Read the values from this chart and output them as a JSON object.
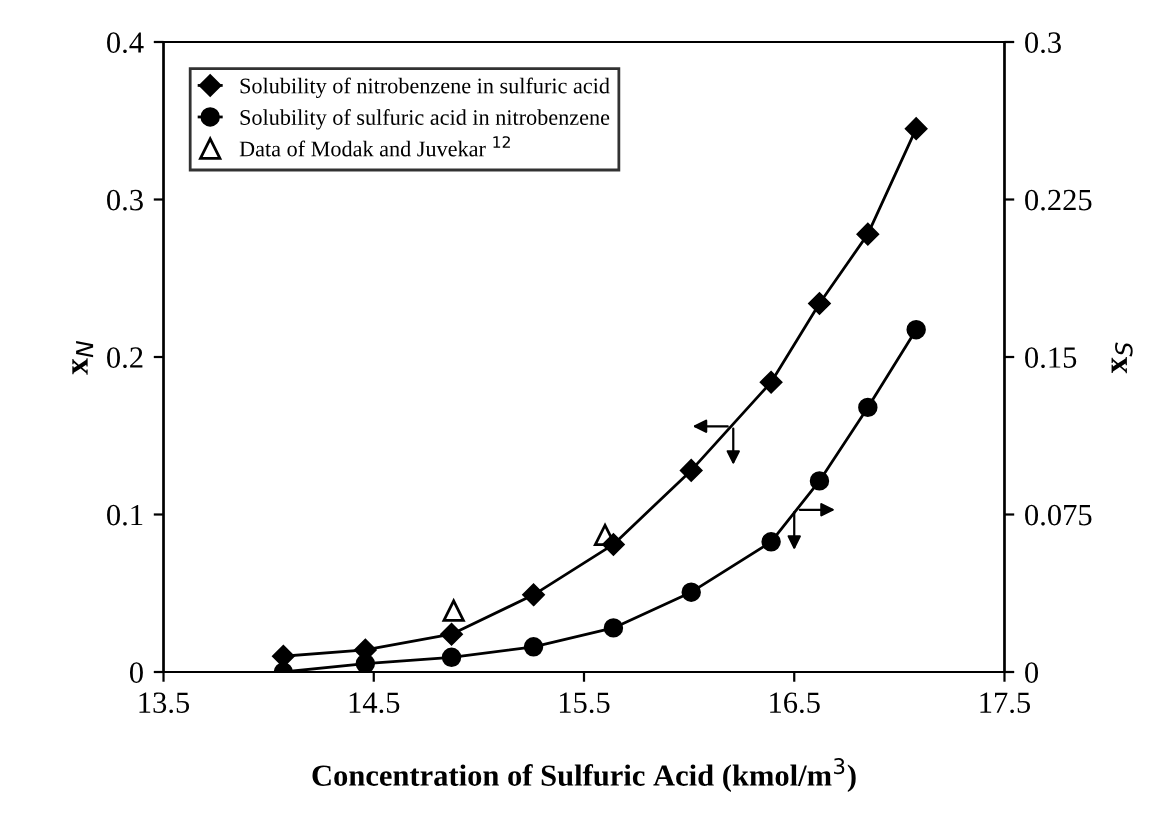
{
  "chart_data": {
    "type": "line",
    "xlabel": "Concentration of Sulfuric Acid (kmol/m$^{3}$)",
    "ylabel": "x$_{N}$",
    "y2label": "x$_{S}$",
    "xlim": [
      13.5,
      17.5
    ],
    "xticks": [
      13.5,
      14.5,
      15.5,
      16.5,
      17.5
    ],
    "ylim": [
      0,
      0.4
    ],
    "yticks": [
      0,
      0.1,
      0.2,
      0.3,
      0.4
    ],
    "y2lim": [
      0,
      0.3
    ],
    "y2ticks": [
      0,
      0.075,
      0.15,
      0.225,
      0.3
    ],
    "grid": false,
    "legend": "top left",
    "series": [
      {
        "name": "Solubility of nitrobenzene in sulfuric acid",
        "color": "#000000",
        "marker": "diamond",
        "x": [
          14.07,
          14.46,
          14.87,
          15.26,
          15.64,
          16.01,
          16.39,
          16.62,
          16.85,
          17.08
        ],
        "values": [
          0.01,
          0.014,
          0.024,
          0.049,
          0.081,
          0.128,
          0.184,
          0.234,
          0.278,
          0.345
        ]
      },
      {
        "name": "Solubility of sulfuric acid in nitrobenzene",
        "color": "#000000",
        "marker": "circle",
        "axis": "y2",
        "x": [
          14.07,
          14.46,
          14.87,
          15.26,
          15.64,
          16.01,
          16.39,
          16.62,
          16.85,
          17.08
        ],
        "values": [
          0.0,
          0.004,
          0.007,
          0.012,
          0.021,
          0.038,
          0.062,
          0.091,
          0.126,
          0.163
        ]
      },
      {
        "name": "Data of Modak and Juvekar $^{12}$",
        "color": "#000000",
        "type": "scatter",
        "marker": "triangle",
        "x": [
          14.88,
          15.6
        ],
        "values": [
          0.039,
          0.087
        ]
      }
    ]
  }
}
